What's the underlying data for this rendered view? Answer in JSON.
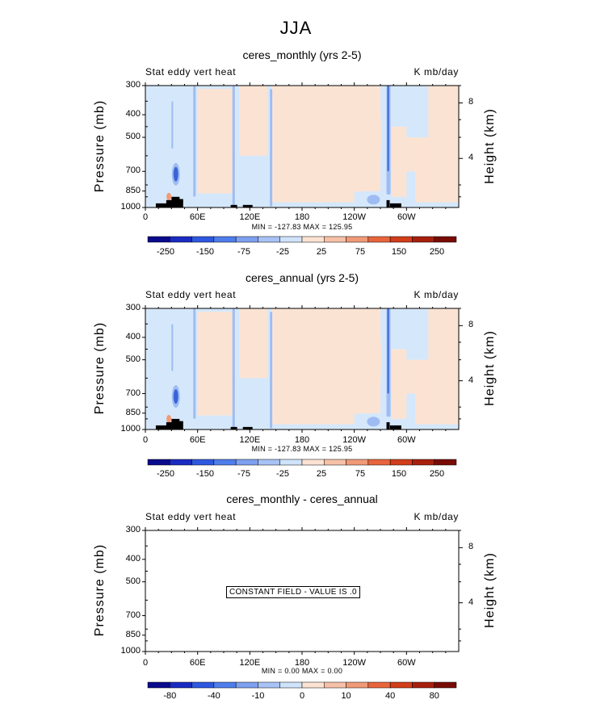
{
  "page_title": "JJA",
  "colors": {
    "labelbar_main": [
      "#0a0a8c",
      "#1a2bc2",
      "#2f58e0",
      "#4f7eec",
      "#7ea0f0",
      "#a8c2f5",
      "#cfe3fb",
      "#fbe2d2",
      "#f6c1a7",
      "#f09a78",
      "#e8653c",
      "#d23d1a",
      "#a8200d",
      "#780c05"
    ],
    "labelbar_diff": [
      "#0a0a8c",
      "#1a2bc2",
      "#2f58e0",
      "#4f7eec",
      "#7ea0f0",
      "#a8c2f5",
      "#cfe3fb",
      "#fbe2d2",
      "#f6c1a7",
      "#f09a78",
      "#e8653c",
      "#d23d1a",
      "#a8200d",
      "#780c05"
    ],
    "fill_light_blue": "#d5e8fb",
    "fill_light_peach": "#fbe3d4",
    "fill_mid_blue": "#9fbcf2",
    "fill_dark_blue": "#3a63d6",
    "topography": "#000000"
  },
  "chart_data": [
    {
      "type": "heatmap",
      "title": "ceres_monthly (yrs 2-5)",
      "left_string": "Stat eddy vert heat",
      "right_string": "K mb/day",
      "ylabel": "Pressure (mb)",
      "right_ylabel": "Height (km)",
      "y_ticks": [
        "300",
        "400",
        "500",
        "700",
        "850",
        "1000"
      ],
      "right_ticks": [
        "8",
        "4"
      ],
      "x_ticks": [
        "0",
        "60E",
        "120E",
        "180",
        "120W",
        "60W"
      ],
      "min_max": "MIN = -127.83   MAX = 125.95",
      "labelbar_labels": [
        "-250",
        "-150",
        "-75",
        "-25",
        "25",
        "75",
        "150",
        "250"
      ]
    },
    {
      "type": "heatmap",
      "title": "ceres_annual (yrs 2-5)",
      "left_string": "Stat eddy vert heat",
      "right_string": "K mb/day",
      "ylabel": "Pressure (mb)",
      "right_ylabel": "Height (km)",
      "y_ticks": [
        "300",
        "400",
        "500",
        "700",
        "850",
        "1000"
      ],
      "right_ticks": [
        "8",
        "4"
      ],
      "x_ticks": [
        "0",
        "60E",
        "120E",
        "180",
        "120W",
        "60W"
      ],
      "min_max": "MIN = -127.83   MAX = 125.95",
      "labelbar_labels": [
        "-250",
        "-150",
        "-75",
        "-25",
        "25",
        "75",
        "150",
        "250"
      ]
    },
    {
      "type": "heatmap",
      "title": "ceres_monthly - ceres_annual",
      "left_string": "Stat eddy vert heat",
      "right_string": "K mb/day",
      "ylabel": "Pressure (mb)",
      "right_ylabel": "Height (km)",
      "y_ticks": [
        "300",
        "400",
        "500",
        "700",
        "850",
        "1000"
      ],
      "right_ticks": [
        "8",
        "4"
      ],
      "x_ticks": [
        "0",
        "60E",
        "120E",
        "180",
        "120W",
        "60W"
      ],
      "min_max": "MIN =    0.00   MAX =    0.00",
      "constant_field": "CONSTANT FIELD - VALUE IS .0",
      "labelbar_labels": [
        "-80",
        "-40",
        "-10",
        "0",
        "10",
        "40",
        "80"
      ]
    }
  ]
}
